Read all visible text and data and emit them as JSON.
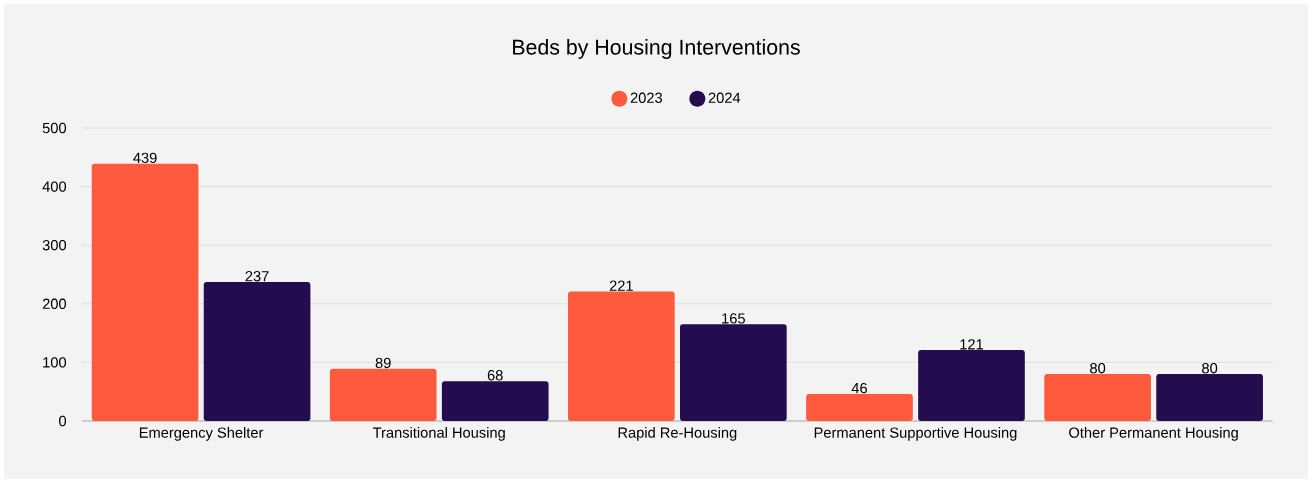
{
  "chart_data": {
    "type": "bar",
    "title": "Beds by Housing Interventions",
    "categories": [
      "Emergency Shelter",
      "Transitional Housing",
      "Rapid Re-Housing",
      "Permanent Supportive Housing",
      "Other Permanent Housing"
    ],
    "series": [
      {
        "name": "2023",
        "color": "#fd5a3e",
        "values": [
          439,
          89,
          221,
          46,
          80
        ]
      },
      {
        "name": "2024",
        "color": "#240c4f",
        "values": [
          237,
          68,
          165,
          121,
          80
        ]
      }
    ],
    "ylim": [
      0,
      500
    ],
    "yticks": [
      0,
      100,
      200,
      300,
      400,
      500
    ],
    "grid": "y",
    "legend": "top",
    "data_labels": true
  }
}
